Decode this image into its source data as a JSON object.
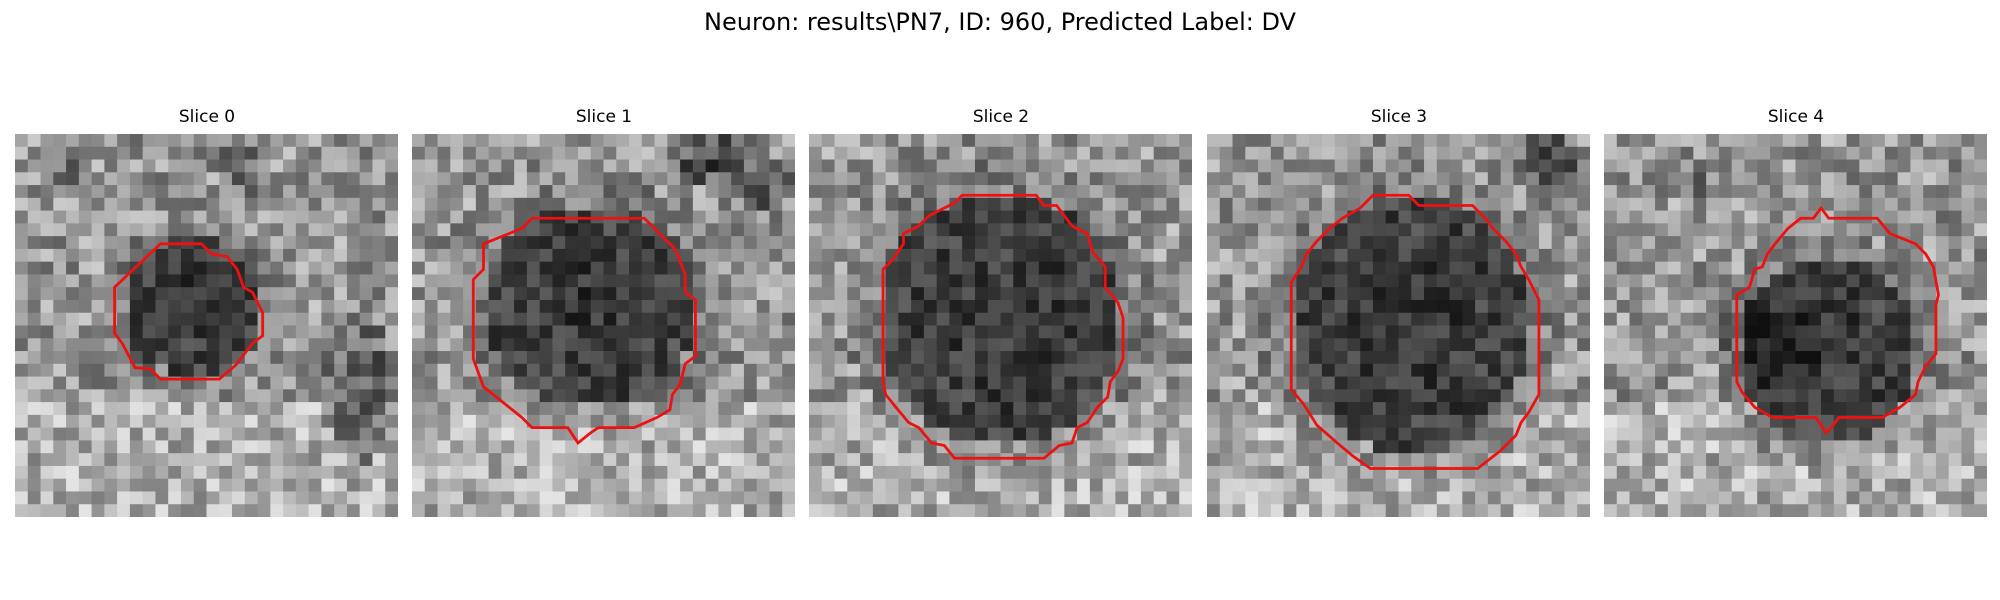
{
  "figure": {
    "title": "Neuron: results\\PN7, ID: 960, Predicted Label: DV"
  },
  "panels": [
    {
      "title": "Slice 0"
    },
    {
      "title": "Slice 1"
    },
    {
      "title": "Slice 2"
    },
    {
      "title": "Slice 3"
    },
    {
      "title": "Slice 4"
    }
  ],
  "colors": {
    "contour": "#ee1111",
    "background": "#ffffff"
  }
}
